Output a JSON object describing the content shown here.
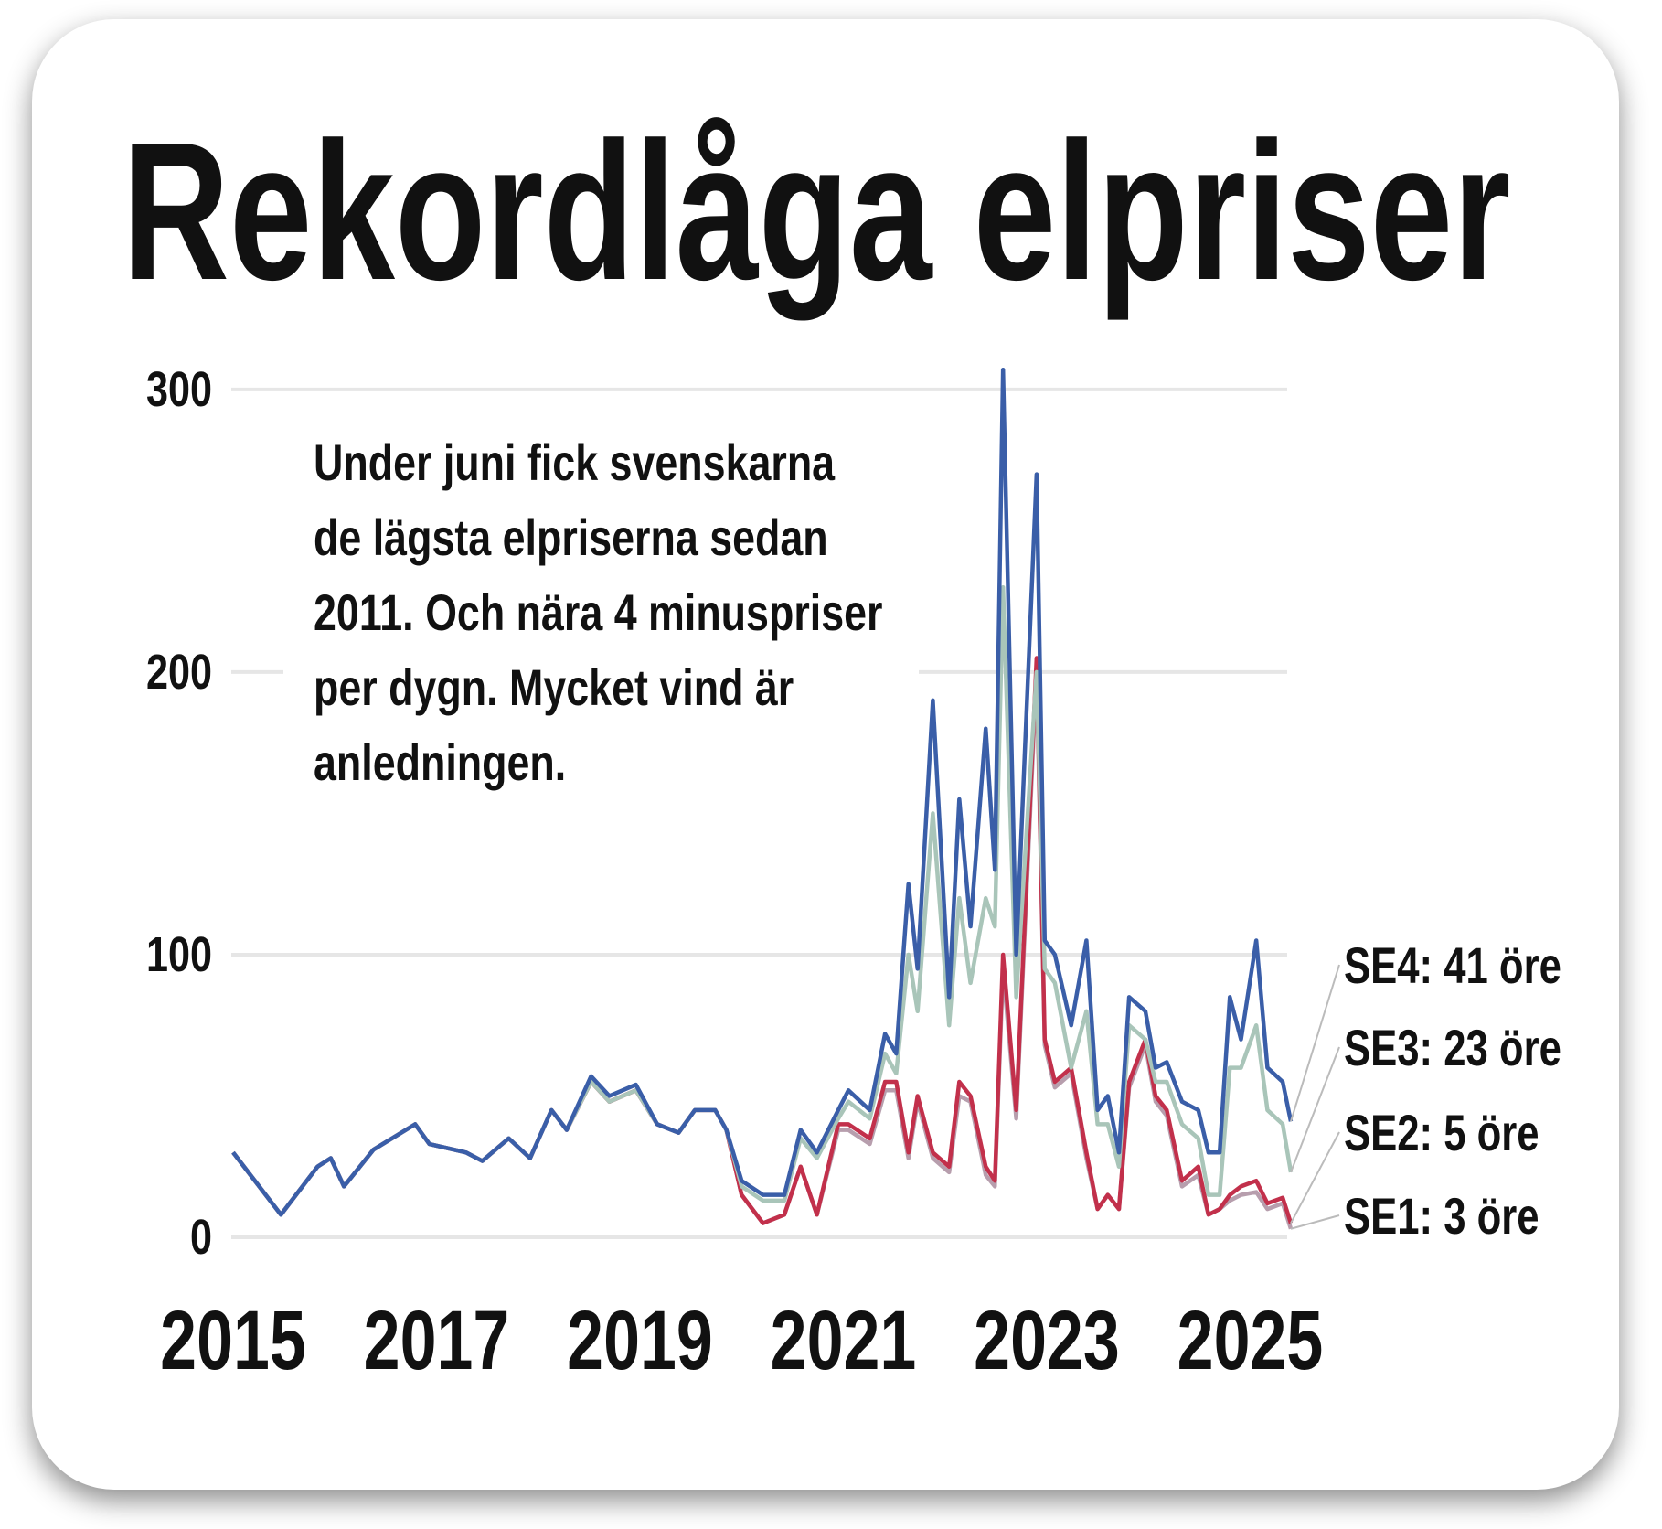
{
  "chart_data": {
    "type": "line",
    "title": "Rekordlåga elpriser",
    "annotation": [
      "Under juni fick svenskarna",
      "de lägsta elpriserna sedan",
      "2011. Och nära 4 minuspriser",
      "per dygn. Mycket vind är",
      "anledningen."
    ],
    "x": [
      2015.0,
      2015.47,
      2015.83,
      2015.96,
      2016.09,
      2016.38,
      2016.79,
      2016.93,
      2017.29,
      2017.45,
      2017.71,
      2017.92,
      2018.13,
      2018.28,
      2018.52,
      2018.7,
      2018.96,
      2019.17,
      2019.38,
      2019.54,
      2019.74,
      2019.85,
      2020.0,
      2020.21,
      2020.42,
      2020.58,
      2020.74,
      2020.95,
      2021.05,
      2021.26,
      2021.41,
      2021.52,
      2021.64,
      2021.73,
      2021.88,
      2022.04,
      2022.14,
      2022.25,
      2022.4,
      2022.49,
      2022.57,
      2022.7,
      2022.9,
      2022.98,
      2023.08,
      2023.24,
      2023.39,
      2023.5,
      2023.6,
      2023.71,
      2023.81,
      2023.97,
      2024.07,
      2024.18,
      2024.33,
      2024.49,
      2024.59,
      2024.7,
      2024.8,
      2024.91,
      2025.06,
      2025.17,
      2025.32,
      2025.4
    ],
    "xlim": [
      2015,
      2025.4
    ],
    "xticks": [
      2015,
      2017,
      2019,
      2021,
      2023,
      2025
    ],
    "ylim": [
      0,
      310
    ],
    "yticks": [
      0,
      100,
      200,
      300
    ],
    "grid": true,
    "series": [
      {
        "name": "SE4: 41 öre",
        "color": "#3a5ea8",
        "values": [
          30,
          8,
          25,
          28,
          18,
          31,
          40,
          33,
          30,
          27,
          35,
          28,
          45,
          38,
          57,
          50,
          54,
          40,
          37,
          45,
          45,
          38,
          20,
          15,
          15,
          38,
          30,
          45,
          52,
          45,
          72,
          65,
          125,
          95,
          190,
          85,
          155,
          110,
          180,
          130,
          307,
          100,
          270,
          105,
          100,
          75,
          105,
          45,
          50,
          30,
          85,
          80,
          60,
          62,
          48,
          45,
          30,
          30,
          85,
          70,
          105,
          60,
          55,
          41
        ]
      },
      {
        "name": "SE3: 23 öre",
        "color": "#a9c5b9",
        "values": [
          30,
          8,
          25,
          28,
          18,
          31,
          40,
          33,
          30,
          27,
          35,
          28,
          45,
          38,
          55,
          48,
          52,
          40,
          37,
          45,
          45,
          38,
          18,
          13,
          13,
          35,
          28,
          42,
          48,
          42,
          65,
          58,
          100,
          80,
          150,
          75,
          120,
          90,
          120,
          110,
          230,
          85,
          200,
          95,
          90,
          60,
          80,
          40,
          40,
          25,
          75,
          70,
          55,
          55,
          40,
          35,
          15,
          15,
          60,
          60,
          75,
          45,
          40,
          23
        ]
      },
      {
        "name": "SE2: 5 öre",
        "color": "#c2304b",
        "values": [
          30,
          8,
          25,
          28,
          18,
          31,
          40,
          33,
          30,
          27,
          35,
          28,
          45,
          38,
          55,
          48,
          52,
          40,
          37,
          45,
          45,
          38,
          15,
          5,
          8,
          25,
          8,
          40,
          40,
          35,
          55,
          55,
          30,
          50,
          30,
          25,
          55,
          50,
          25,
          20,
          100,
          45,
          205,
          70,
          55,
          60,
          30,
          10,
          15,
          10,
          55,
          70,
          50,
          45,
          20,
          25,
          8,
          10,
          15,
          18,
          20,
          12,
          14,
          5
        ]
      },
      {
        "name": "SE1: 3 öre",
        "color": "#b79ead",
        "values": [
          30,
          8,
          25,
          28,
          18,
          31,
          40,
          33,
          30,
          27,
          35,
          28,
          45,
          38,
          55,
          48,
          52,
          40,
          37,
          45,
          45,
          38,
          15,
          5,
          8,
          25,
          8,
          38,
          38,
          33,
          52,
          52,
          28,
          48,
          28,
          23,
          50,
          48,
          22,
          18,
          95,
          42,
          200,
          68,
          53,
          58,
          28,
          10,
          15,
          10,
          53,
          68,
          48,
          43,
          18,
          22,
          8,
          10,
          13,
          15,
          16,
          10,
          12,
          3
        ]
      }
    ]
  }
}
